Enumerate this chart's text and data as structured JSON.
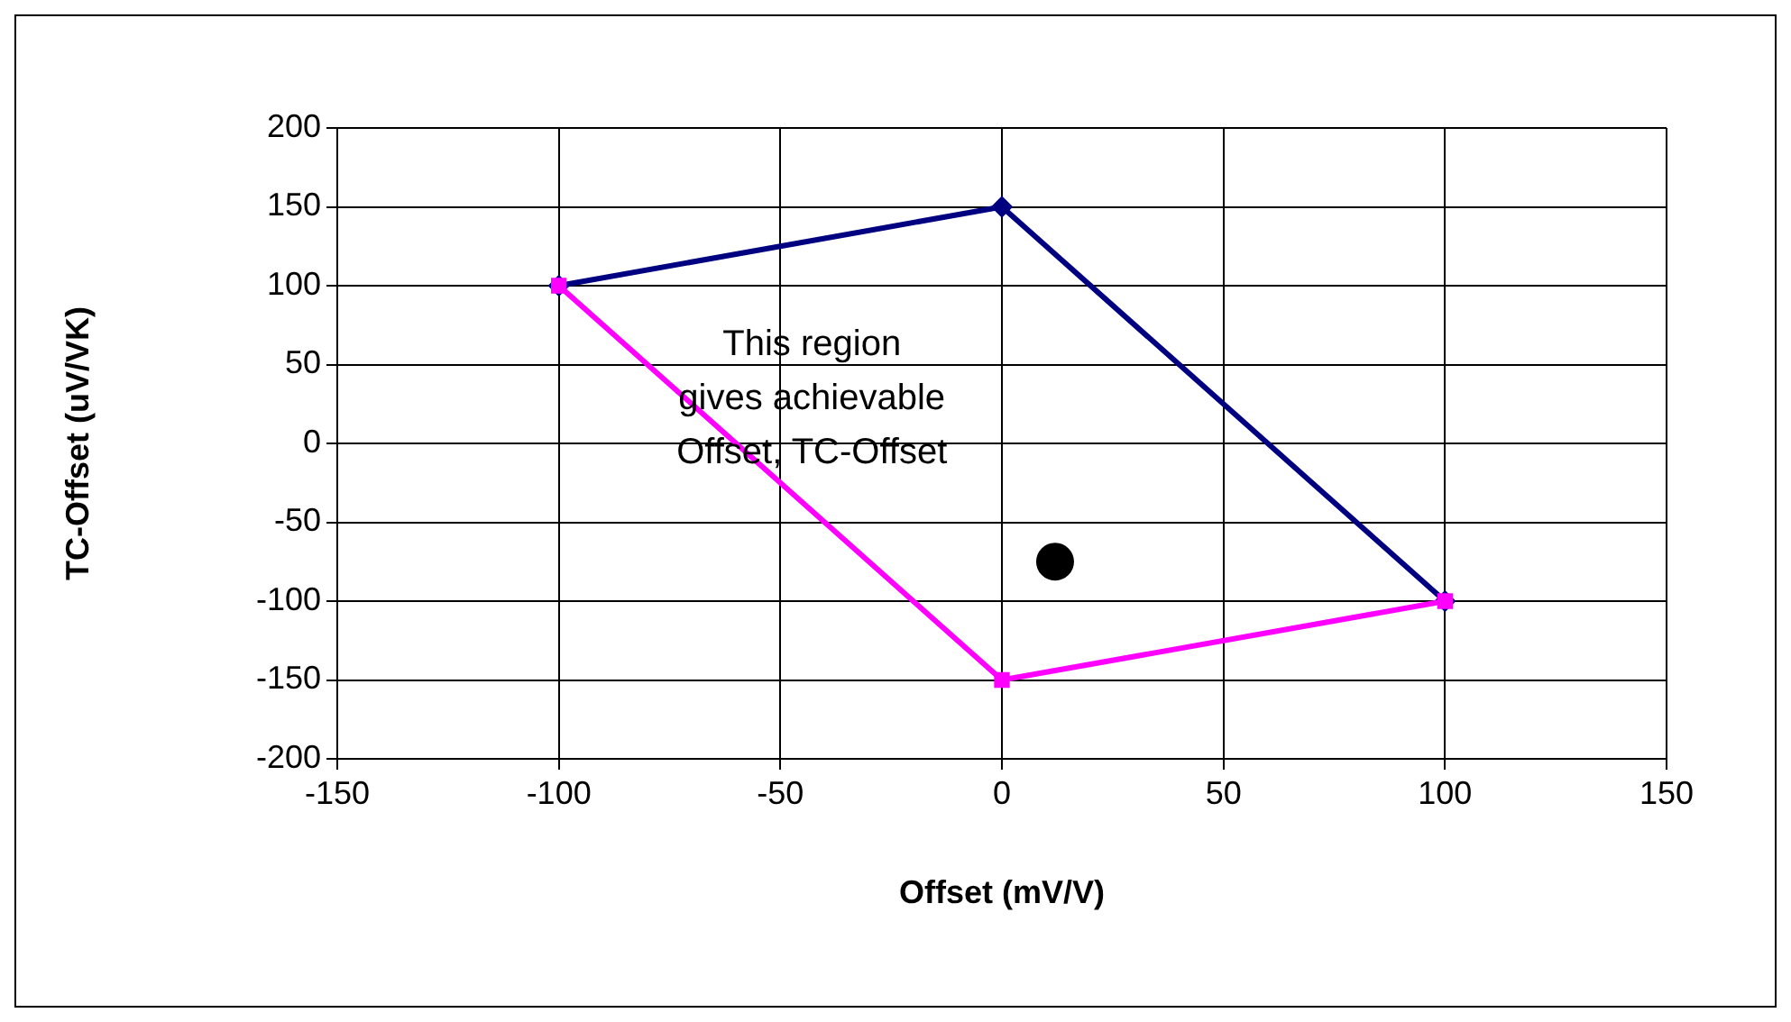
{
  "chart_data": {
    "type": "line",
    "xlabel": "Offset (mV/V)",
    "ylabel": "TC-Offset (uV/VK)",
    "xlim": [
      -150,
      150
    ],
    "xticks": [
      -150,
      -100,
      -50,
      0,
      50,
      100,
      150
    ],
    "ylim": [
      -200,
      200
    ],
    "yticks": [
      -200,
      -150,
      -100,
      -50,
      0,
      50,
      100,
      150,
      200
    ],
    "grid": true,
    "legend": false,
    "series": [
      {
        "color": "#000080",
        "marker": "diamond",
        "x": [
          -100,
          0,
          100
        ],
        "values": [
          100,
          150,
          -100
        ]
      },
      {
        "color": "#ff00ff",
        "marker": "square",
        "x": [
          -100,
          0,
          100
        ],
        "values": [
          100,
          -150,
          -100
        ]
      },
      {
        "type": "scatter",
        "color": "#000000",
        "marker": "circle",
        "x": [
          12
        ],
        "values": [
          -75
        ]
      }
    ],
    "annotations": [
      "This region\ngives achievable\nOffset, TC-Offset"
    ]
  }
}
